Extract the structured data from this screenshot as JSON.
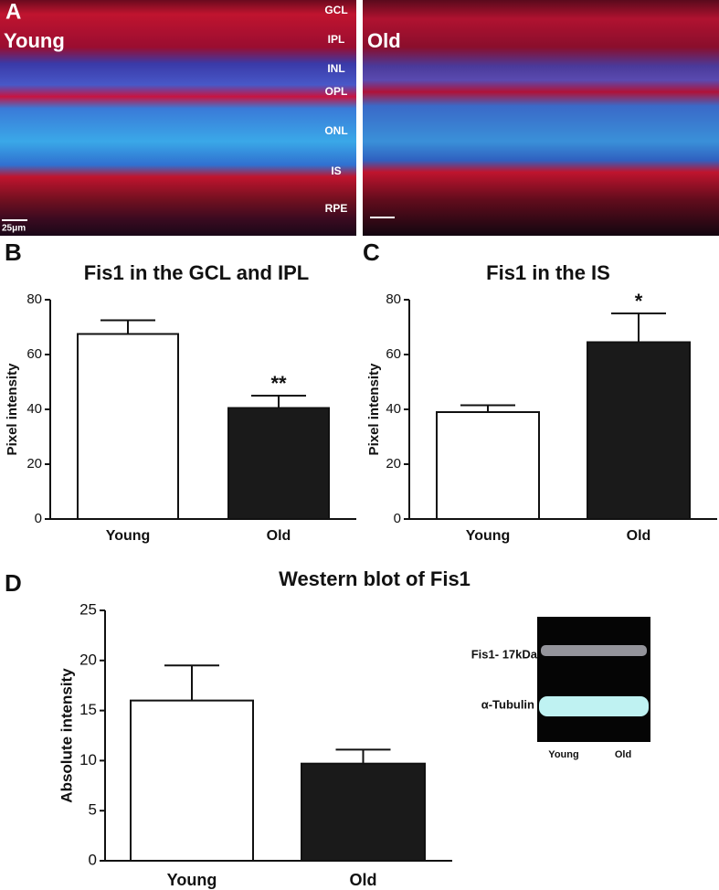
{
  "panel_letters": [
    "A",
    "B",
    "C",
    "D"
  ],
  "micrographs": {
    "left_label": "Young",
    "right_label": "Old",
    "layers": [
      "GCL",
      "IPL",
      "INL",
      "OPL",
      "ONL",
      "IS",
      "RPE"
    ],
    "scale_bar": "25μm"
  },
  "blot": {
    "bands": [
      "Fis1- 17kDa",
      "α-Tubulin"
    ],
    "lanes": [
      "Young",
      "Old"
    ]
  },
  "chart_data": [
    {
      "type": "bar",
      "title": "Fis1 in the GCL and IPL",
      "y_label": "Pixel intensity",
      "categories": [
        "Young",
        "Old"
      ],
      "values": [
        67.5,
        40.5
      ],
      "errors": [
        5,
        4.5
      ],
      "colors": [
        "#ffffff",
        "#1a1a1a"
      ],
      "value_annotations": [
        null,
        "**"
      ],
      "ylim": [
        0,
        80
      ],
      "yticks": [
        0,
        20,
        40,
        60,
        80
      ]
    },
    {
      "type": "bar",
      "title": "Fis1 in the IS",
      "y_label": "Pixel intensity",
      "categories": [
        "Young",
        "Old"
      ],
      "values": [
        39,
        64.5
      ],
      "errors": [
        2.5,
        10.5
      ],
      "colors": [
        "#ffffff",
        "#1a1a1a"
      ],
      "value_annotations": [
        null,
        "*"
      ],
      "ylim": [
        0,
        80
      ],
      "yticks": [
        0,
        20,
        40,
        60,
        80
      ]
    },
    {
      "type": "bar",
      "title": "Western blot of Fis1",
      "y_label": "Absolute intensity",
      "categories": [
        "Young",
        "Old"
      ],
      "values": [
        16,
        9.7
      ],
      "errors": [
        3.5,
        1.4
      ],
      "colors": [
        "#ffffff",
        "#1a1a1a"
      ],
      "ylim": [
        0,
        25
      ],
      "yticks": [
        0,
        5,
        10,
        15,
        20,
        25
      ]
    }
  ]
}
